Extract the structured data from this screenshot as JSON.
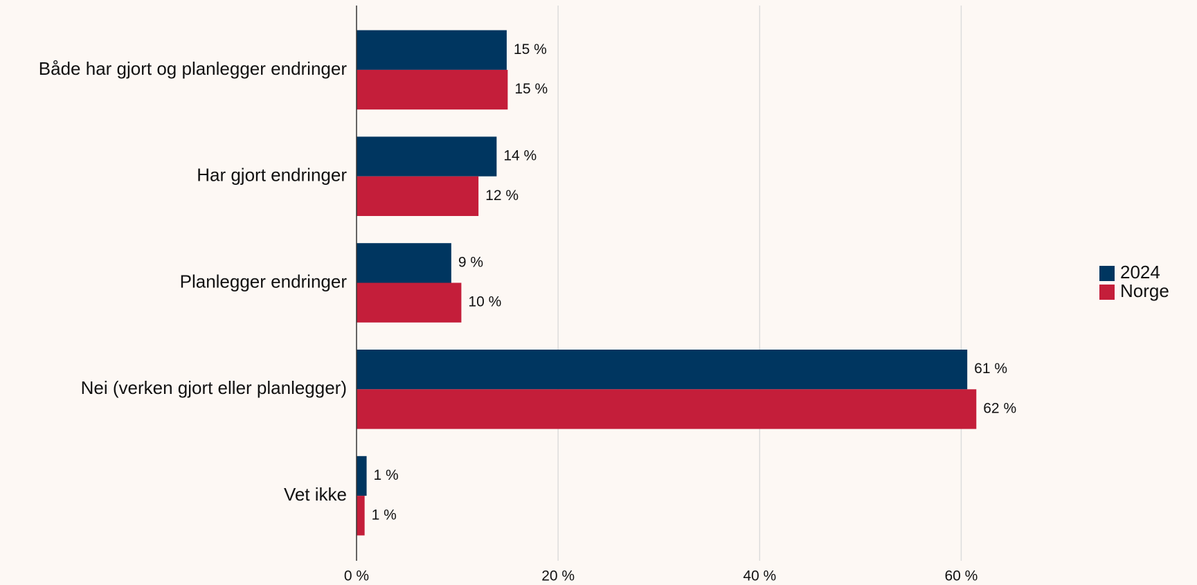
{
  "chart_data": {
    "type": "barh",
    "categories": [
      "Både har gjort og planlegger endringer",
      "Har gjort endringer",
      "Planlegger endringer",
      "Nei (verken gjort eller planlegger)",
      "Vet ikke"
    ],
    "series": [
      {
        "name": "2024",
        "color": "#003660",
        "values": [
          14.9,
          13.9,
          9.4,
          60.6,
          1.0
        ],
        "value_labels": [
          "15 %",
          "14 %",
          "9 %",
          "61 %",
          "1 %"
        ]
      },
      {
        "name": "Norge",
        "color": "#c41e3a",
        "values": [
          15.0,
          12.1,
          10.4,
          61.5,
          0.8
        ],
        "value_labels": [
          "15 %",
          "12 %",
          "10 %",
          "62 %",
          "1 %"
        ]
      }
    ],
    "xlim": [
      0,
      70
    ],
    "xticks": [
      {
        "value": 0,
        "label": "0 %"
      },
      {
        "value": 20,
        "label": "20 %"
      },
      {
        "value": 40,
        "label": "40 %"
      },
      {
        "value": 60,
        "label": "60 %"
      }
    ],
    "grid": true,
    "legend": "right"
  }
}
